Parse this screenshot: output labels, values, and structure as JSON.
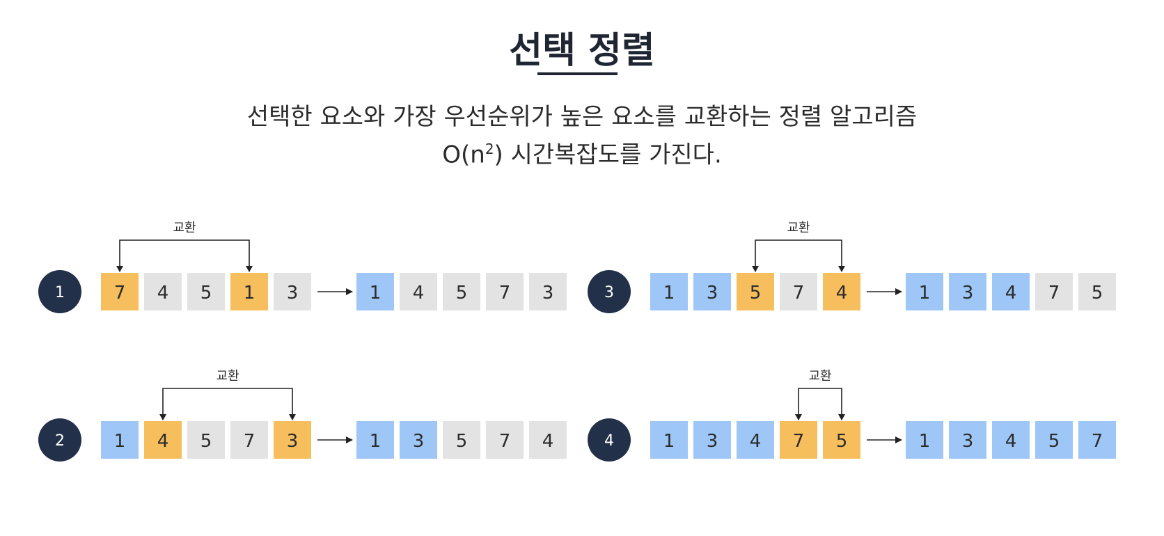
{
  "title": "선택 정렬",
  "description": {
    "line1": "선택한 요소와 가장 우선순위가 높은 요소를 교환하는 정렬 알고리즘",
    "line2_prefix": "O(n",
    "line2_sup": "2",
    "line2_suffix": ") 시간복잡도를 가진다."
  },
  "colors": {
    "swap": "#f6be5c",
    "sorted": "#9ec7f7",
    "unsorted": "#e3e3e3",
    "step_circle": "#22304a"
  },
  "steps": [
    {
      "number": "1",
      "swap_label": "교환",
      "swap_indices": [
        0,
        3
      ],
      "before": [
        {
          "value": "7",
          "state": "swap"
        },
        {
          "value": "4",
          "state": "unsorted"
        },
        {
          "value": "5",
          "state": "unsorted"
        },
        {
          "value": "1",
          "state": "swap"
        },
        {
          "value": "3",
          "state": "unsorted"
        }
      ],
      "after": [
        {
          "value": "1",
          "state": "sorted"
        },
        {
          "value": "4",
          "state": "unsorted"
        },
        {
          "value": "5",
          "state": "unsorted"
        },
        {
          "value": "7",
          "state": "unsorted"
        },
        {
          "value": "3",
          "state": "unsorted"
        }
      ]
    },
    {
      "number": "2",
      "swap_label": "교환",
      "swap_indices": [
        1,
        4
      ],
      "before": [
        {
          "value": "1",
          "state": "sorted"
        },
        {
          "value": "4",
          "state": "swap"
        },
        {
          "value": "5",
          "state": "unsorted"
        },
        {
          "value": "7",
          "state": "unsorted"
        },
        {
          "value": "3",
          "state": "swap"
        }
      ],
      "after": [
        {
          "value": "1",
          "state": "sorted"
        },
        {
          "value": "3",
          "state": "sorted"
        },
        {
          "value": "5",
          "state": "unsorted"
        },
        {
          "value": "7",
          "state": "unsorted"
        },
        {
          "value": "4",
          "state": "unsorted"
        }
      ]
    },
    {
      "number": "3",
      "swap_label": "교환",
      "swap_indices": [
        2,
        4
      ],
      "before": [
        {
          "value": "1",
          "state": "sorted"
        },
        {
          "value": "3",
          "state": "sorted"
        },
        {
          "value": "5",
          "state": "swap"
        },
        {
          "value": "7",
          "state": "unsorted"
        },
        {
          "value": "4",
          "state": "swap"
        }
      ],
      "after": [
        {
          "value": "1",
          "state": "sorted"
        },
        {
          "value": "3",
          "state": "sorted"
        },
        {
          "value": "4",
          "state": "sorted"
        },
        {
          "value": "7",
          "state": "unsorted"
        },
        {
          "value": "5",
          "state": "unsorted"
        }
      ]
    },
    {
      "number": "4",
      "swap_label": "교환",
      "swap_indices": [
        3,
        4
      ],
      "before": [
        {
          "value": "1",
          "state": "sorted"
        },
        {
          "value": "3",
          "state": "sorted"
        },
        {
          "value": "4",
          "state": "sorted"
        },
        {
          "value": "7",
          "state": "swap"
        },
        {
          "value": "5",
          "state": "swap"
        }
      ],
      "after": [
        {
          "value": "1",
          "state": "sorted"
        },
        {
          "value": "3",
          "state": "sorted"
        },
        {
          "value": "4",
          "state": "sorted"
        },
        {
          "value": "5",
          "state": "sorted"
        },
        {
          "value": "7",
          "state": "sorted"
        }
      ]
    }
  ]
}
